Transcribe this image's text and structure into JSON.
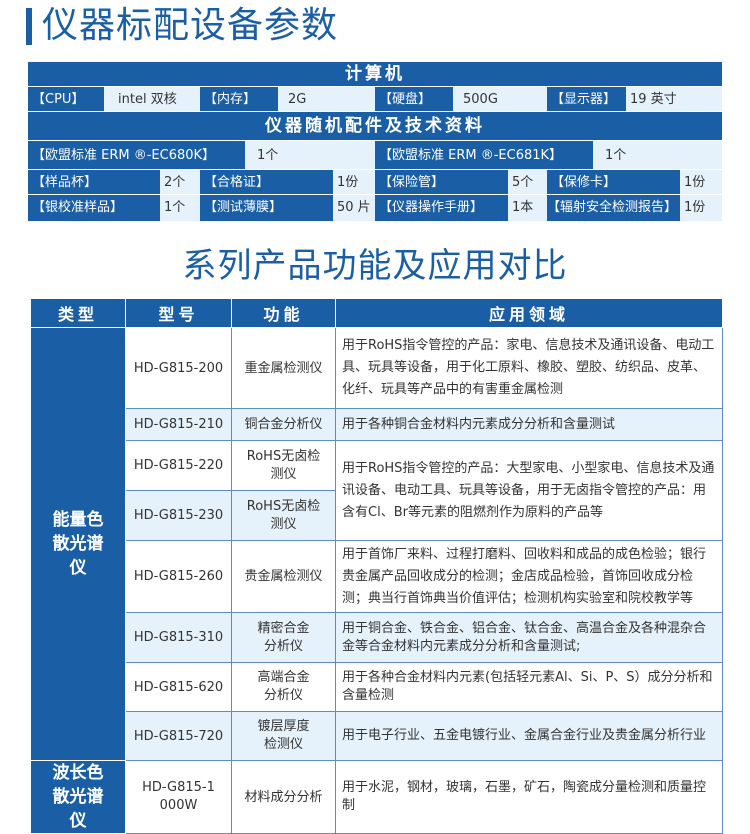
{
  "title1": "仪器标配设备参数",
  "spec": {
    "computer_header": "计算机",
    "computer": [
      [
        "【CPU】",
        "intel 双核"
      ],
      [
        "【内存】",
        "2G"
      ],
      [
        "【硬盘】",
        "500G"
      ],
      [
        "【显示器】",
        "19 英寸"
      ]
    ],
    "acc_header": "仪器随机配件及技术资料",
    "acc_row1": [
      [
        "【欧盟标准 ERM ®-EC680K】",
        "1个"
      ],
      [
        "【欧盟标准 ERM ®-EC681K】",
        "1个"
      ]
    ],
    "acc_row2": [
      [
        "【样品杯】",
        "2个"
      ],
      [
        "【合格证】",
        "1份"
      ],
      [
        "【保险管】",
        "5个"
      ],
      [
        "【保修卡】",
        "1份"
      ]
    ],
    "acc_row3": [
      [
        "【银校准样品】",
        "1个"
      ],
      [
        "【测试薄膜】",
        "50 片"
      ],
      [
        "【仪器操作手册】",
        "1本"
      ],
      [
        "【辐射安全检测报告】",
        "1份"
      ]
    ]
  },
  "title2": "系列产品功能及应用对比",
  "table": {
    "headers": [
      "类型",
      "型号",
      "功能",
      "应用领域"
    ],
    "type1": "能量色散光谱仪",
    "type2": "波长色散光谱仪",
    "rows": [
      {
        "model": "HD-G815-200",
        "func": "重金属检测仪",
        "app": "用于RoHS指令管控的产品：家电、信息技术及通讯设备、电动工具、玩具等设备，用于化工原料、橡胶、塑胶、纺织品、皮革、化纤、玩具等产品中的有害重金属检测"
      },
      {
        "model": "HD-G815-210",
        "func": "铜合金分析仪",
        "app": "用于各种铜合金材料内元素成分分析和含量测试"
      },
      {
        "model": "HD-G815-220",
        "func": "RoHS无卤检测仪",
        "app": "用于RoHS指令管控的产品：大型家电、小型家电、信息技术及通讯设备、电动工具、玩具等设备，用于无卤指令管控的产品：用含有Cl、Br等元素的阻燃剂作为原料的产品等"
      },
      {
        "model": "HD-G815-230",
        "func": "RoHS无卤检测仪"
      },
      {
        "model": "HD-G815-260",
        "func": "贵金属检测仪",
        "app": "用于首饰厂来料、过程打磨料、回收料和成品的成色检验；银行贵金属产品回收成分的检测；金店成品检验，首饰回收成分检测；典当行首饰典当价值评估；检测机构实验室和院校教学等"
      },
      {
        "model": "HD-G815-310",
        "func": "精密合金分析仪",
        "app": "用于铜合金、铁合金、铝合金、钛合金、高温合金及各种混杂合金等合金材料内元素成分分析和含量测试;"
      },
      {
        "model": "HD-G815-620",
        "func": "高端合金分析仪",
        "app": "用于各种合金材料内元素(包括轻元素Al、Si、P、S）成分分析和含量检测"
      },
      {
        "model": "HD-G815-720",
        "func": "镀层厚度检测仪",
        "app": "用于电子行业、五金电镀行业、金属合金行业及贵金属分析行业"
      },
      {
        "model": "HD-G815-1000W",
        "func": "材料成分分析",
        "app": "用于水泥，钢材，玻璃，石墨，矿石，陶瓷成分量检测和质量控制"
      }
    ]
  }
}
